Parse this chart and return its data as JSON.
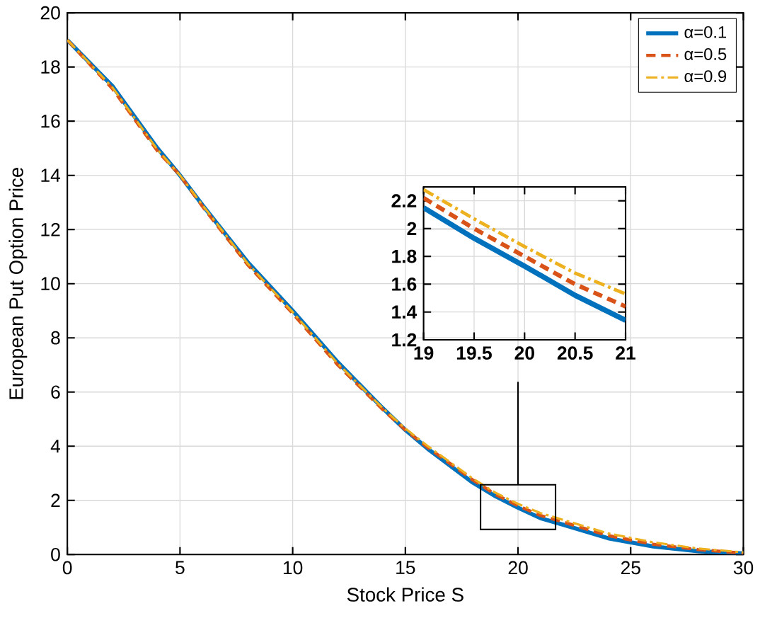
{
  "chart_data": [
    {
      "type": "line",
      "xlabel": "Stock Price S",
      "ylabel": "European Put Option Price",
      "x": [
        0,
        2,
        4,
        5,
        6,
        8,
        10,
        12,
        14,
        15,
        16,
        18,
        19,
        20,
        21,
        22,
        24,
        26,
        28,
        30
      ],
      "series": [
        {
          "name": "α=0.1",
          "color": "#0072bd",
          "line_style": "solid",
          "values": [
            19,
            17.3,
            15.0,
            14.0,
            12.9,
            10.8,
            9.0,
            7.1,
            5.4,
            4.6,
            3.9,
            2.65,
            2.15,
            1.73,
            1.34,
            1.1,
            0.6,
            0.3,
            0.12,
            0.04
          ]
        },
        {
          "name": "α=0.5",
          "color": "#d95319",
          "line_style": "dashed",
          "values": [
            19,
            17.2,
            14.9,
            14.0,
            12.85,
            10.7,
            8.9,
            7.0,
            5.35,
            4.6,
            3.95,
            2.75,
            2.22,
            1.8,
            1.44,
            1.2,
            0.7,
            0.38,
            0.18,
            0.05
          ]
        },
        {
          "name": "α=0.9",
          "color": "#edb120",
          "line_style": "dashdot",
          "values": [
            19,
            17.25,
            14.95,
            14.0,
            12.9,
            10.75,
            8.95,
            7.05,
            5.4,
            4.65,
            4.0,
            2.8,
            2.28,
            1.87,
            1.53,
            1.28,
            0.78,
            0.45,
            0.22,
            0.08
          ]
        }
      ],
      "xlim": [
        0,
        30
      ],
      "ylim": [
        0,
        20
      ],
      "xticks": [
        0,
        5,
        10,
        15,
        20,
        25,
        30
      ],
      "yticks": [
        0,
        2,
        4,
        6,
        8,
        10,
        12,
        14,
        16,
        18,
        20
      ],
      "grid": true,
      "legend": "top right"
    },
    {
      "type": "line",
      "x": [
        19,
        19.5,
        20,
        20.5,
        21
      ],
      "series": [
        {
          "color": "#0072bd",
          "line_style": "solid",
          "values": [
            2.15,
            1.93,
            1.73,
            1.52,
            1.34
          ]
        },
        {
          "color": "#d95319",
          "line_style": "dashed",
          "values": [
            2.22,
            2.0,
            1.8,
            1.6,
            1.44
          ]
        },
        {
          "color": "#edb120",
          "line_style": "dashdot",
          "values": [
            2.28,
            2.07,
            1.87,
            1.68,
            1.53
          ]
        }
      ],
      "xlim": [
        19,
        21
      ],
      "ylim": [
        1.2,
        2.3
      ],
      "xticks": [
        19,
        19.5,
        20,
        20.5,
        21
      ],
      "yticks": [
        1.2,
        1.4,
        1.6,
        1.8,
        2,
        2.2
      ],
      "grid": true
    }
  ]
}
